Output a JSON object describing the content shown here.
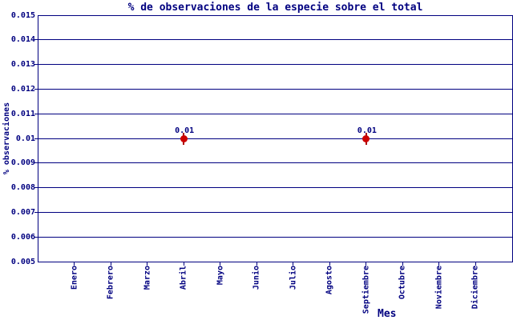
{
  "chart_data": {
    "type": "scatter",
    "title": "% de observaciones de la especie sobre el total",
    "xlabel": "Mes",
    "ylabel": "% observaciones",
    "categories": [
      "Enero",
      "Febrero",
      "Marzo",
      "Abril",
      "Mayo",
      "Junio",
      "Julio",
      "Agosto",
      "Septiembre",
      "Octubre",
      "Noviembre",
      "Diciembre"
    ],
    "points": [
      {
        "category": "Abril",
        "value": 0.01,
        "label": "0.01"
      },
      {
        "category": "Septiembre",
        "value": 0.01,
        "label": "0.01"
      }
    ],
    "ylim": [
      0.005,
      0.015
    ],
    "ytick_labels": [
      "0.015",
      "0.014",
      "0.013",
      "0.012",
      "0.011",
      "0.01",
      "0.009",
      "0.008",
      "0.007",
      "0.006",
      "0.005"
    ],
    "grid": true,
    "legend": "none",
    "colors": {
      "axis": "#000080",
      "text": "#000080",
      "point": "#cc0000"
    }
  }
}
